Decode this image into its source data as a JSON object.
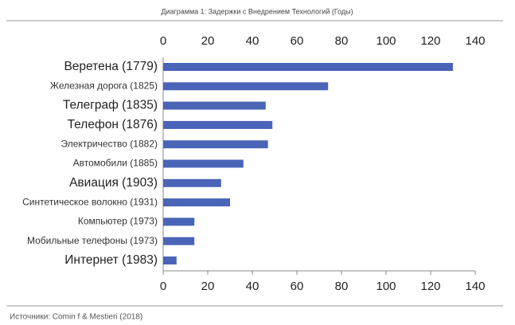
{
  "chart_data": {
    "type": "bar",
    "orientation": "horizontal",
    "title": "Диаграмма 1: Задержки с Внедрением Технологий (Годы)",
    "source": "Источники: Comin f & Mestieri (2018)",
    "categories": [
      "Веретена (1779)",
      "Железная дорога (1825)",
      "Телеграф (1835)",
      "Телефон (1876)",
      "Электричество (1882)",
      "Автомобили (1885)",
      "Авиация (1903)",
      "Синтетическое волокно (1931)",
      "Компьютер (1973)",
      "Мобильные телефоны (1973)",
      "Интернет (1983)"
    ],
    "values": [
      130,
      74,
      46,
      49,
      47,
      36,
      26,
      30,
      14,
      14,
      6
    ],
    "color": "#4a64b8",
    "xlim": [
      0,
      140
    ],
    "xticks": [
      0,
      20,
      40,
      60,
      80,
      100,
      120,
      140
    ]
  }
}
